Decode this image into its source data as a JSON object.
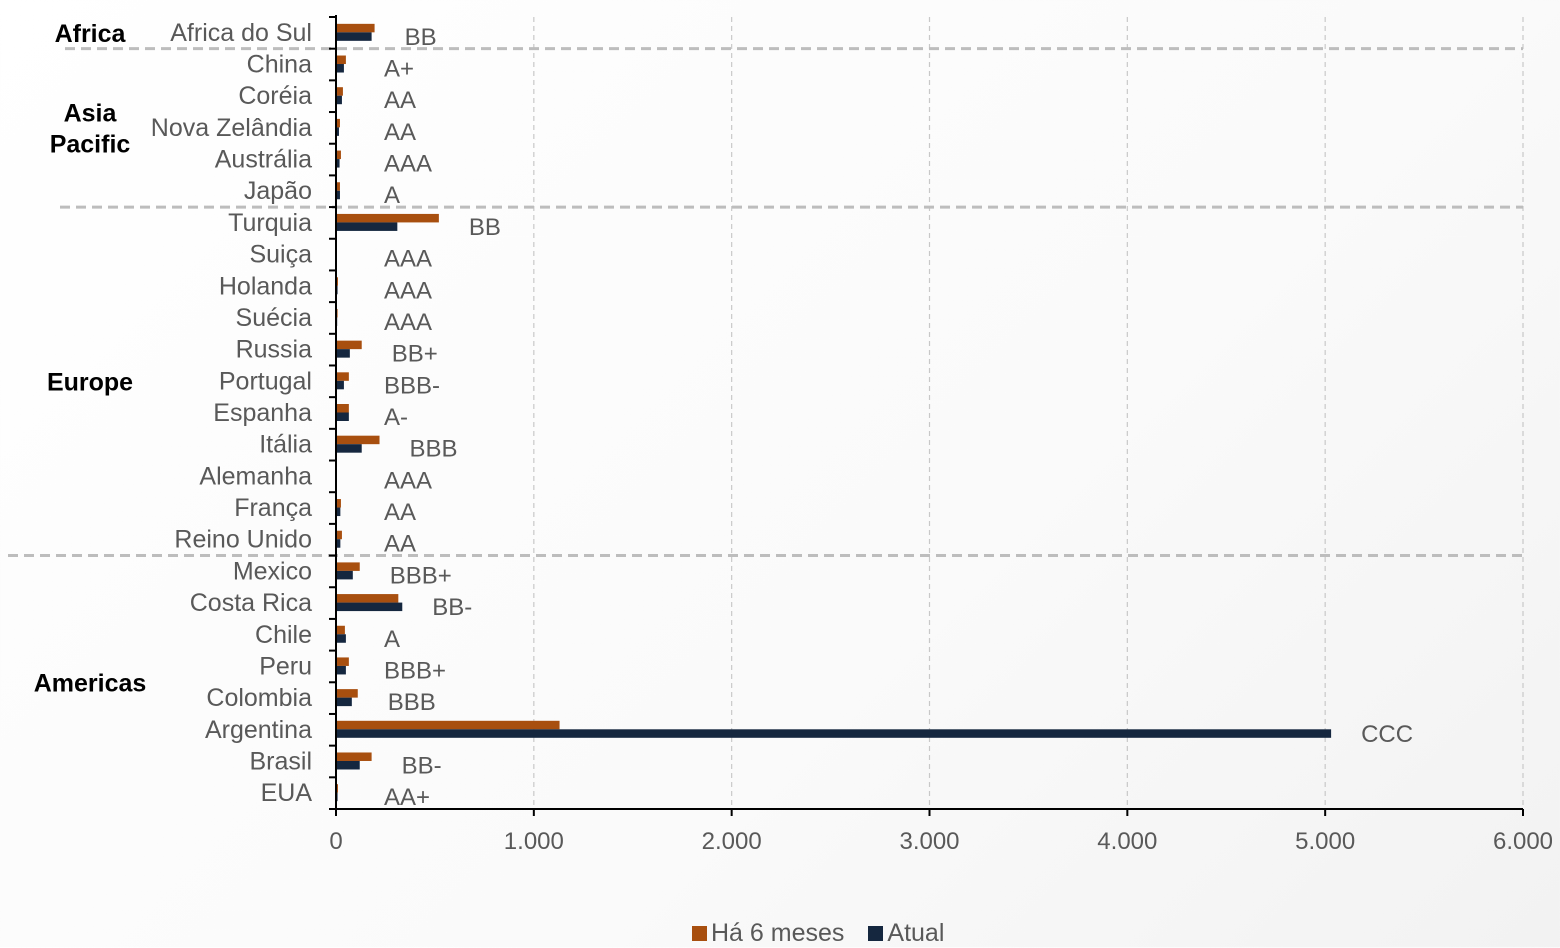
{
  "chart_data": {
    "type": "bar",
    "orientation": "horizontal",
    "categories": [
      "Africa do Sul",
      "China",
      "Coréia",
      "Nova Zelândia",
      "Austrália",
      "Japão",
      "Turquia",
      "Suiça",
      "Holanda",
      "Suécia",
      "Russia",
      "Portugal",
      "Espanha",
      "Itália",
      "Alemanha",
      "França",
      "Reino Unido",
      "Mexico",
      "Costa Rica",
      "Chile",
      "Peru",
      "Colombia",
      "Argentina",
      "Brasil",
      "EUA"
    ],
    "series": [
      {
        "name": "Há 6 meses",
        "color": "#A84F0F",
        "values": [
          195,
          50,
          35,
          20,
          25,
          20,
          520,
          5,
          10,
          8,
          130,
          65,
          65,
          220,
          5,
          25,
          30,
          120,
          315,
          45,
          65,
          110,
          1130,
          180,
          10
        ]
      },
      {
        "name": "Atual",
        "color": "#15273F",
        "values": [
          180,
          40,
          30,
          15,
          18,
          20,
          310,
          5,
          8,
          6,
          70,
          40,
          65,
          130,
          5,
          22,
          22,
          85,
          335,
          50,
          50,
          80,
          5030,
          120,
          8
        ]
      }
    ],
    "ratings": [
      "BB",
      "A+",
      "AA",
      "AA",
      "AAA",
      "A",
      "BB",
      "AAA",
      "AAA",
      "AAA",
      "BB+",
      "BBB-",
      "A-",
      "BBB",
      "AAA",
      "AA",
      "AA",
      "BBB+",
      "BB-",
      "A",
      "BBB+",
      "BBB",
      "CCC",
      "BB-",
      "AA+"
    ],
    "groups": [
      {
        "lines": [
          "Africa"
        ],
        "from": 0,
        "to": 0
      },
      {
        "lines": [
          "Asia",
          "Pacific"
        ],
        "from": 1,
        "to": 5
      },
      {
        "lines": [
          "Europe"
        ],
        "from": 6,
        "to": 16
      },
      {
        "lines": [
          "Americas"
        ],
        "from": 17,
        "to": 24
      }
    ],
    "xlim": [
      0,
      6000
    ],
    "xticks": [
      0,
      1000,
      2000,
      3000,
      4000,
      5000,
      6000
    ],
    "xtick_labels": [
      "0",
      "1.000",
      "2.000",
      "3.000",
      "4.000",
      "5.000",
      "6.000"
    ],
    "grid": true,
    "legend_position": "bottom",
    "title": "",
    "xlabel": "",
    "ylabel": ""
  },
  "legend": {
    "items": [
      {
        "label": "Há 6 meses",
        "color": "#A84F0F"
      },
      {
        "label": "Atual",
        "color": "#15273F"
      }
    ]
  }
}
